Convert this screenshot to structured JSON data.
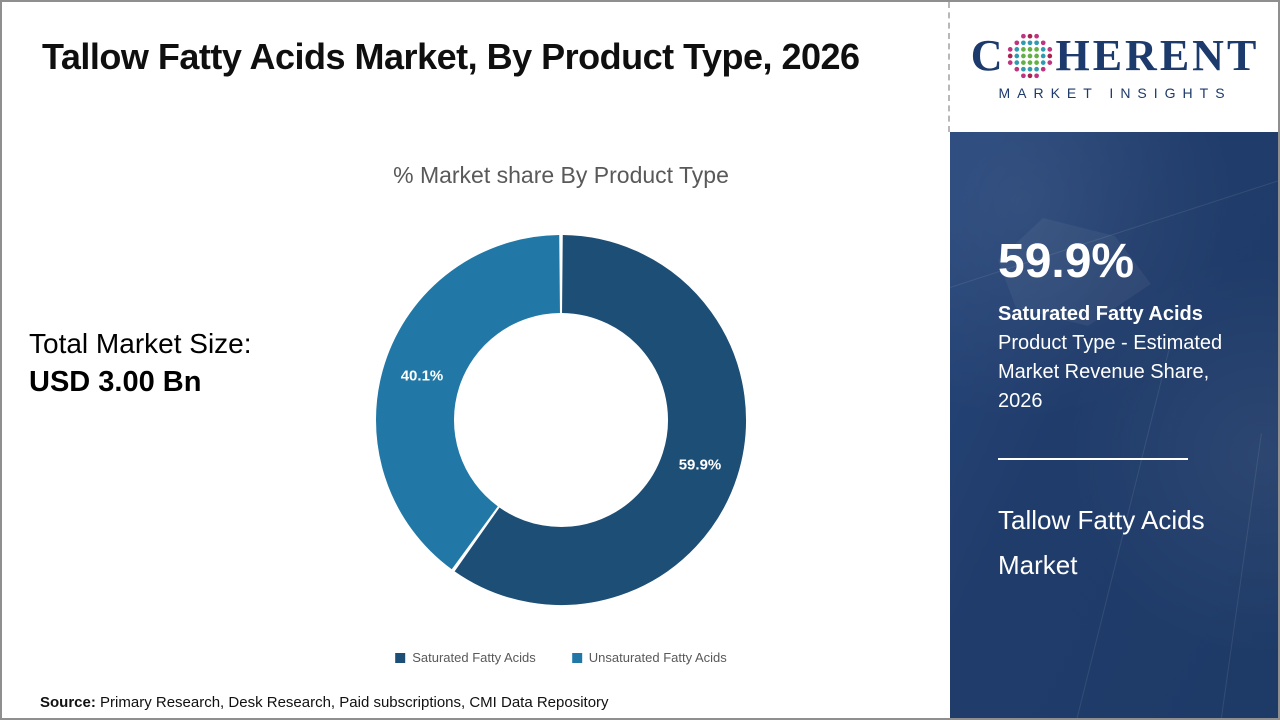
{
  "header": {
    "title": "Tallow Fatty Acids Market, By Product Type, 2026"
  },
  "logo": {
    "name_start": "C",
    "name_end": "HERENT",
    "subtitle": "MARKET INSIGHTS",
    "brand_navy": "#1c3a6b",
    "globe_colors": {
      "inner": "#63b145",
      "middle": "#2f9ab0",
      "outer_a": "#bf3480",
      "outer_b": "#a92350"
    }
  },
  "left_panel": {
    "label": "Total Market Size:",
    "value": "USD 3.00 Bn"
  },
  "chart_data": {
    "type": "pie",
    "donut": true,
    "title": "% Market share By Product Type",
    "categories": [
      "Saturated Fatty Acids",
      "Unsaturated Fatty Acids"
    ],
    "values": [
      59.9,
      40.1
    ],
    "labels": [
      "59.9%",
      "40.1%"
    ],
    "colors": [
      "#1d4e75",
      "#2178a6"
    ],
    "start_angle_deg": 0,
    "direction": "clockwise",
    "legend_position": "bottom"
  },
  "sidebar": {
    "background_color": "#1f3a68",
    "stat_value": "59.9%",
    "stat_name": "Saturated Fatty Acids",
    "stat_description": "Product Type - Estimated Market Revenue Share, 2026",
    "market_name": "Tallow Fatty Acids Market"
  },
  "footer": {
    "source_label": "Source:",
    "source_text": "Primary Research, Desk Research, Paid subscriptions, CMI Data Repository"
  }
}
